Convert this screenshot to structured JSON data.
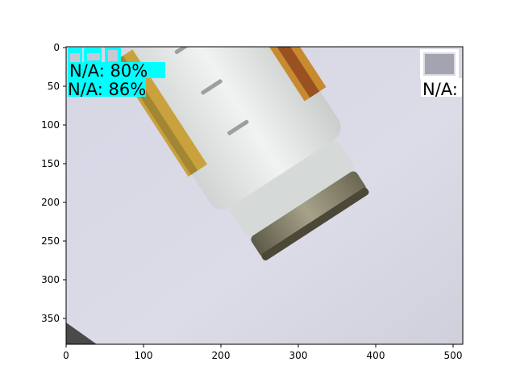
{
  "image": {
    "description_colors": {
      "background": "#d9d9e6",
      "jar_glass": "#e8ebea",
      "lid": "#8a8670",
      "label": "#d4a83a"
    }
  },
  "axes": {
    "x_ticks": [
      "0",
      "100",
      "200",
      "300",
      "400",
      "500"
    ],
    "y_ticks": [
      "0",
      "50",
      "100",
      "150",
      "200",
      "250",
      "300",
      "350"
    ],
    "x_range": [
      0,
      512
    ],
    "y_range": [
      384,
      0
    ]
  },
  "detections": [
    {
      "label": "N/A: 86%",
      "color": "#00ffff"
    },
    {
      "label": "N/A: 80%",
      "color": "#00ffff"
    },
    {
      "label": "N/A:",
      "color": "#ffffff"
    }
  ]
}
